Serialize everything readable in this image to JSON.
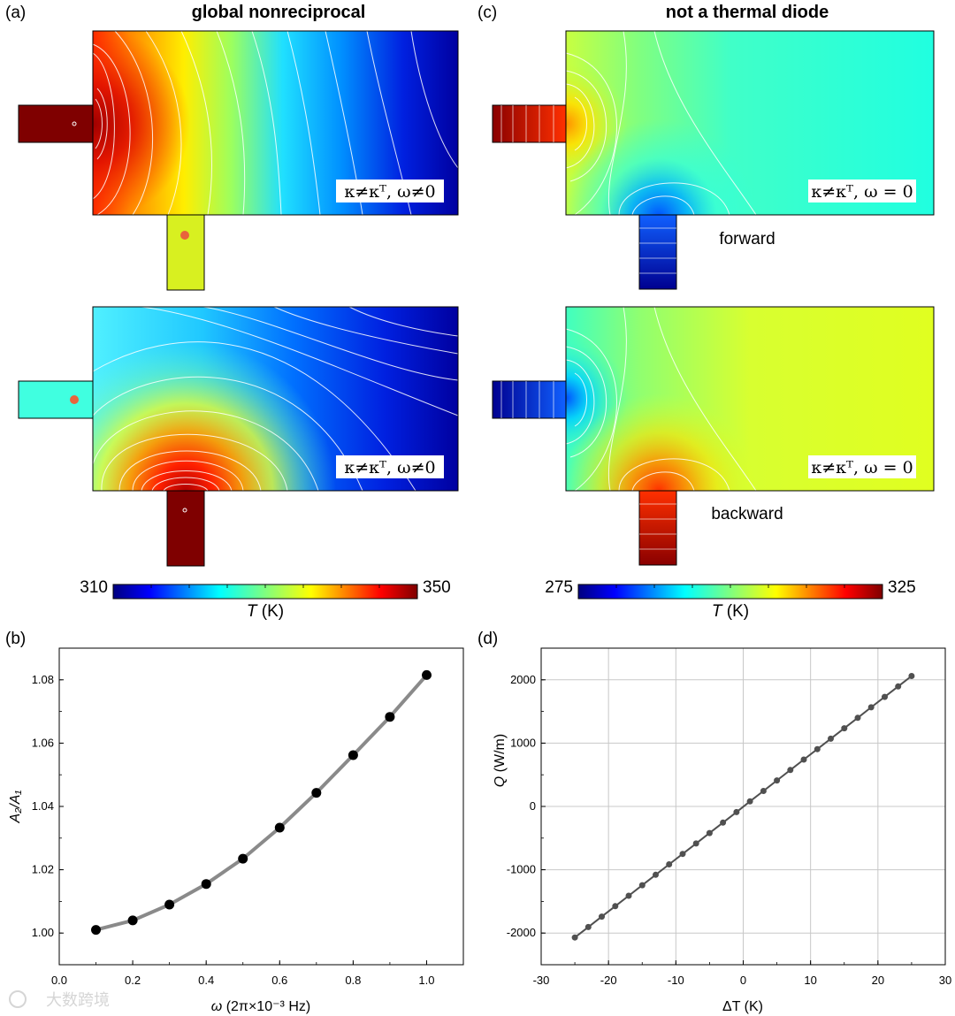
{
  "panels": {
    "a": {
      "tag": "(a)",
      "title": "global nonreciprocal",
      "condition_top": "κ≠κᵀ, ω≠0",
      "condition_bottom": "κ≠κᵀ, ω≠0"
    },
    "c": {
      "tag": "(c)",
      "title": "not a thermal diode",
      "condition_top": "κ≠κᵀ, ω = 0",
      "condition_bottom": "κ≠κᵀ, ω = 0",
      "label_forward": "forward",
      "label_backward": "backward"
    },
    "b": {
      "tag": "(b)"
    },
    "d": {
      "tag": "(d)"
    }
  },
  "colorbar_a": {
    "min": "310",
    "max": "350",
    "label_var": "T",
    "label_unit": " (K)"
  },
  "colorbar_c": {
    "min": "275",
    "max": "325",
    "label_var": "T",
    "label_unit": " (K)"
  },
  "watermark": "大数跨境",
  "colors": {
    "line_b": "#8a8a8a",
    "line_d": "#505050",
    "marker": "#000000",
    "grid": "#c8c8c8",
    "dot": "#e8643c"
  },
  "chart_data": [
    {
      "type": "line",
      "panel": "b",
      "xlabel_var": "ω",
      "xlabel_unit": " (2π×10⁻³ Hz)",
      "ylabel": "A₂/A₁",
      "x": [
        0.1,
        0.2,
        0.3,
        0.4,
        0.5,
        0.6,
        0.7,
        0.8,
        0.9,
        1.0
      ],
      "y": [
        1.001,
        1.004,
        1.009,
        1.0155,
        1.0235,
        1.0333,
        1.0443,
        1.0562,
        1.0683,
        1.0815
      ],
      "xlim": [
        0.0,
        1.1
      ],
      "ylim": [
        0.99,
        1.09
      ],
      "xticks": [
        "0.0",
        "0.2",
        "0.4",
        "0.6",
        "0.8",
        "1.0"
      ],
      "yticks": [
        "1.00",
        "1.02",
        "1.04",
        "1.06",
        "1.08"
      ],
      "grid": false
    },
    {
      "type": "line",
      "panel": "d",
      "xlabel_var": "ΔT",
      "xlabel_unit": " (K)",
      "ylabel_var": "Q",
      "ylabel_unit": " (W/m)",
      "x": [
        -25,
        -23,
        -21,
        -19,
        -17,
        -15,
        -13,
        -11,
        -9,
        -7,
        -5,
        -3,
        -1,
        1,
        3,
        5,
        7,
        9,
        11,
        13,
        15,
        17,
        19,
        21,
        23,
        25
      ],
      "y": [
        -2070,
        -1905,
        -1740,
        -1575,
        -1410,
        -1245,
        -1080,
        -915,
        -750,
        -585,
        -420,
        -255,
        -90,
        80,
        245,
        410,
        575,
        740,
        905,
        1070,
        1235,
        1400,
        1565,
        1730,
        1895,
        2060
      ],
      "xlim": [
        -30,
        30
      ],
      "ylim": [
        -2500,
        2500
      ],
      "xticks": [
        "-30",
        "-20",
        "-10",
        "0",
        "10",
        "20",
        "30"
      ],
      "yticks": [
        "-2000",
        "-1000",
        "0",
        "1000",
        "2000"
      ],
      "grid": true
    }
  ]
}
